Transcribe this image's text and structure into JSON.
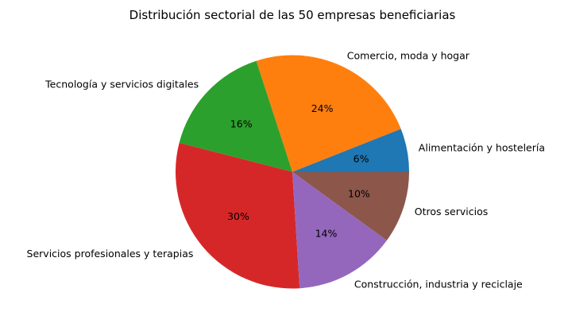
{
  "chart_data": {
    "type": "pie",
    "title": "Distribución sectorial de las 50 empresas beneficiarias",
    "slices": [
      {
        "label": "Alimentación y hostelería",
        "value": 6,
        "pct_label": "6%",
        "color": "#1f77b4"
      },
      {
        "label": "Comercio, moda y hogar",
        "value": 24,
        "pct_label": "24%",
        "color": "#ff7f0e"
      },
      {
        "label": "Tecnología y servicios digitales",
        "value": 16,
        "pct_label": "16%",
        "color": "#2ca02c"
      },
      {
        "label": "Servicios profesionales y terapias",
        "value": 30,
        "pct_label": "30%",
        "color": "#d62728"
      },
      {
        "label": "Construcción, industria y reciclaje",
        "value": 14,
        "pct_label": "14%",
        "color": "#9467bd"
      },
      {
        "label": "Otros servicios",
        "value": 10,
        "pct_label": "10%",
        "color": "#8c564b"
      }
    ],
    "start_angle": 0,
    "direction": "counterclockwise",
    "units": "%",
    "legend": "none",
    "pct_distance": 0.6,
    "label_distance": 1.1
  }
}
